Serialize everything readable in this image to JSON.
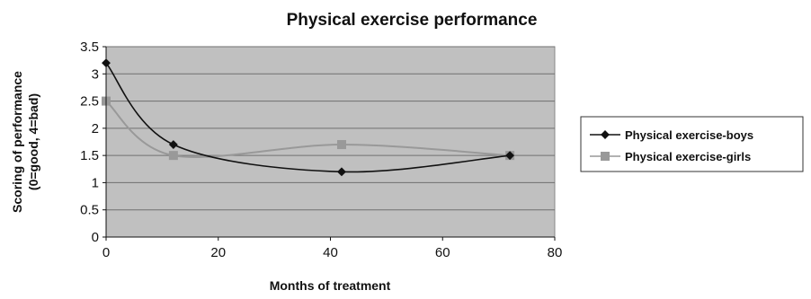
{
  "chart_data": {
    "type": "line",
    "title": "Physical exercise performance",
    "xlabel": "Months of treatment",
    "ylabel_lines": [
      "Scoring of performance",
      "(0=good, 4=bad)"
    ],
    "xlim": [
      0,
      80
    ],
    "ylim": [
      0,
      3.5
    ],
    "x_ticks": [
      0,
      20,
      40,
      60,
      80
    ],
    "x_tick_labels": [
      "0",
      "20",
      "40",
      "60",
      "80"
    ],
    "y_ticks": [
      0,
      0.5,
      1,
      1.5,
      2,
      2.5,
      3,
      3.5
    ],
    "y_tick_labels": [
      "0",
      "0.5",
      "1",
      "1.5",
      "2",
      "2.5",
      "3",
      "3.5"
    ],
    "grid": "horizontal",
    "plot_background": "#c0c0c0",
    "legend_position": "right",
    "smoothed": true,
    "series": [
      {
        "name": "Physical exercise-boys",
        "color": "#111111",
        "marker": "diamond",
        "x": [
          0,
          12,
          42,
          72
        ],
        "y": [
          3.2,
          1.7,
          1.2,
          1.5
        ]
      },
      {
        "name": "Physical exercise-girls",
        "color": "#999999",
        "marker": "square",
        "x": [
          0,
          12,
          42,
          72
        ],
        "y": [
          2.5,
          1.5,
          1.7,
          1.5
        ]
      }
    ]
  }
}
